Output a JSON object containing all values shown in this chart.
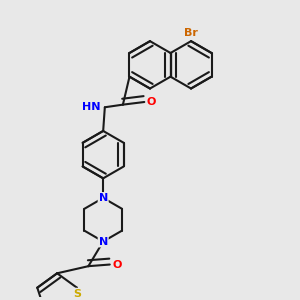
{
  "background_color": "#e8e8e8",
  "line_color": "#1a1a1a",
  "bond_width": 1.5,
  "atom_colors": {
    "Br": "#cc6600",
    "O": "#ff0000",
    "N": "#0000ff",
    "S": "#ccaa00",
    "C": "#1a1a1a"
  },
  "font_size": 8,
  "fig_size": [
    3.0,
    3.0
  ],
  "dpi": 100
}
